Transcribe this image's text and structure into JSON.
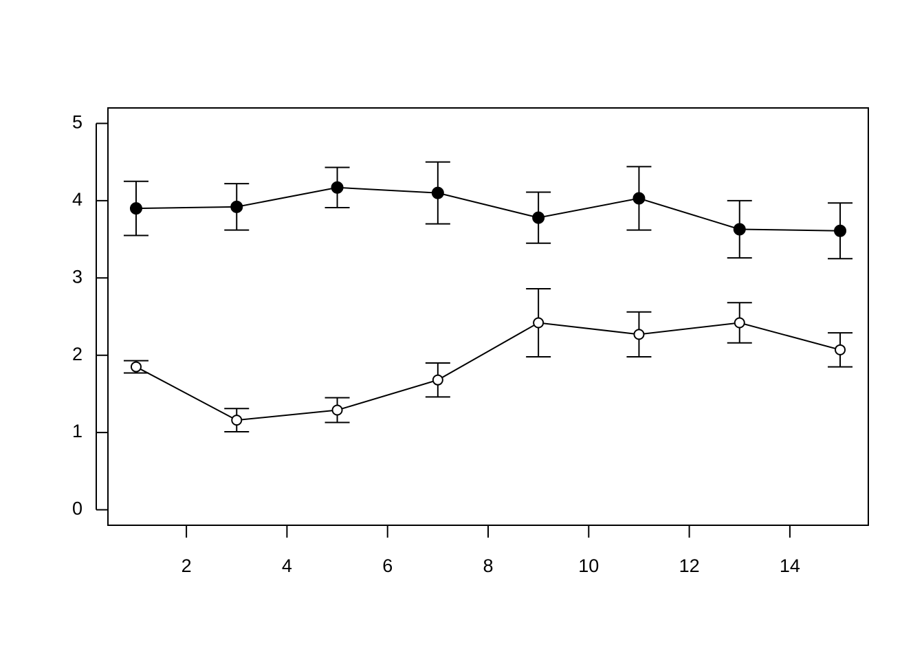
{
  "chart_data": {
    "type": "errorbar-line",
    "x": [
      1,
      3,
      5,
      7,
      9,
      11,
      13,
      15
    ],
    "series": [
      {
        "color": "#000000",
        "marker": "filled-circle",
        "values": [
          3.9,
          3.92,
          4.17,
          4.1,
          3.78,
          4.03,
          3.63,
          3.61
        ],
        "errors": [
          0.35,
          0.3,
          0.26,
          0.4,
          0.33,
          0.41,
          0.37,
          0.36
        ]
      },
      {
        "color": "#000000",
        "marker": "open-circle",
        "values": [
          1.85,
          1.16,
          1.29,
          1.68,
          2.42,
          2.27,
          2.42,
          2.07
        ],
        "errors": [
          0.08,
          0.15,
          0.16,
          0.22,
          0.44,
          0.29,
          0.26,
          0.22
        ]
      }
    ],
    "xlim": [
      0.44,
      15.56
    ],
    "ylim": [
      -0.2,
      5.2
    ],
    "xticks": [
      2,
      4,
      6,
      8,
      10,
      12,
      14
    ],
    "yticks": [
      0,
      1,
      2,
      3,
      4,
      5
    ]
  }
}
